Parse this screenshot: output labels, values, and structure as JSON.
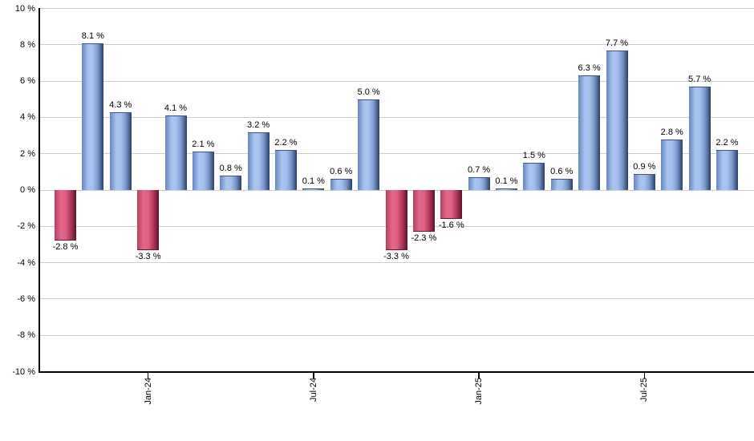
{
  "chart_data": {
    "type": "bar",
    "title": "",
    "xlabel": "",
    "ylabel": "",
    "values": [
      -2.8,
      8.1,
      4.3,
      -3.3,
      4.1,
      2.1,
      0.8,
      3.2,
      2.2,
      0.1,
      0.6,
      5.0,
      -3.3,
      -2.3,
      -1.6,
      0.7,
      0.1,
      1.5,
      0.6,
      6.3,
      7.7,
      0.9,
      2.8,
      5.7,
      2.2
    ],
    "bar_value_labels": [
      "-2.8 %",
      "8.1 %",
      "4.3 %",
      "-3.3 %",
      "4.1 %",
      "2.1 %",
      "0.8 %",
      "3.2 %",
      "2.2 %",
      "0.1 %",
      "0.6 %",
      "5.0 %",
      "-3.3 %",
      "-2.3 %",
      "-1.6 %",
      "0.7 %",
      "0.1 %",
      "1.5 %",
      "0.6 %",
      "6.3 %",
      "7.7 %",
      "0.9 %",
      "2.8 %",
      "5.7 %",
      "2.2 %"
    ],
    "y_axis": {
      "min": -10,
      "max": 10,
      "tick_step": 2,
      "tick_labels": [
        "10 %",
        "8 %",
        "6 %",
        "4 %",
        "2 %",
        "0 %",
        "-2 %",
        "-4 %",
        "-6 %",
        "-8 %",
        "-10 %"
      ]
    },
    "x_axis": {
      "ticks": [
        {
          "label": "Jan-24",
          "bar_index": 3
        },
        {
          "label": "Jul-24",
          "bar_index": 9
        },
        {
          "label": "Jan-25",
          "bar_index": 15
        },
        {
          "label": "Jul-25",
          "bar_index": 21
        }
      ]
    },
    "legend": {
      "visible": false
    },
    "grid": "horizontal",
    "colors": {
      "positive_bar_mid": "#a9c5ef",
      "positive_bar_edge": "#2b3f5f",
      "negative_bar_mid": "#e4688a",
      "negative_bar_edge": "#581226",
      "gridline": "#cdcdcd",
      "axis": "#000000",
      "label_text": "#000000"
    }
  }
}
